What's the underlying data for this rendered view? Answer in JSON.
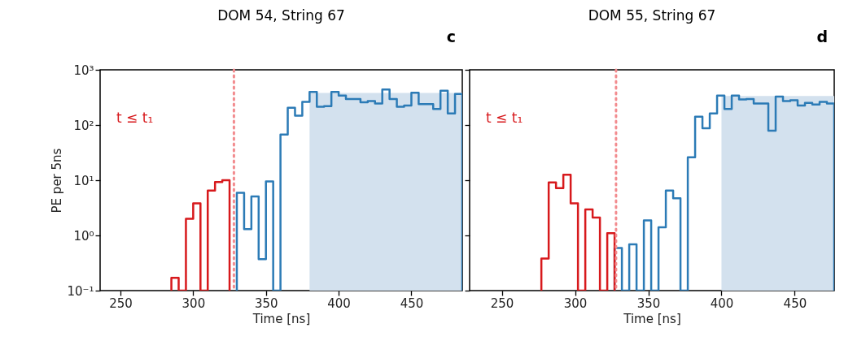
{
  "chart_data": [
    {
      "type": "histogram",
      "title": "DOM 54, String 67",
      "xlabel": "Time [ns]",
      "ylabel": "PE per 5ns",
      "log": true,
      "xlim": [
        236,
        485
      ],
      "xticks": [
        250,
        300,
        350,
        400,
        450
      ],
      "ylim": [
        0.1,
        1000
      ],
      "yticks": [
        {
          "value": 0.1,
          "label": "10⁻¹"
        },
        {
          "value": 1,
          "label": "10⁰"
        },
        {
          "value": 10,
          "label": "10¹"
        },
        {
          "value": 100,
          "label": "10²"
        },
        {
          "value": 1000,
          "label": "10³"
        }
      ],
      "annotations": [
        "t ≤ t₁",
        "c"
      ],
      "grid": false,
      "ref_lines": [
        {
          "axis": "x",
          "value": 328,
          "color": "#f28b8e",
          "line_style": "dotted"
        }
      ],
      "series": [
        {
          "type": "area",
          "color": "#d3e1ee",
          "x": [
            380,
            485
          ],
          "values": [
            380,
            380
          ]
        },
        {
          "color": "#2c7bb6",
          "bins": [
            330,
            335,
            340,
            345,
            350,
            355,
            360,
            365,
            370,
            375,
            380,
            385,
            390,
            395,
            400,
            405,
            410,
            415,
            420,
            425,
            430,
            435,
            440,
            445,
            450,
            455,
            460,
            465,
            470,
            475,
            480,
            485
          ],
          "values": [
            5.9,
            1.3,
            5.1,
            0.37,
            9.5,
            null,
            67,
            206,
            148,
            263,
            397,
            214,
            219,
            397,
            342,
            296,
            296,
            259,
            272,
            245,
            441,
            296,
            214,
            225,
            383,
            240,
            240,
            195,
            417,
            162,
            364
          ]
        },
        {
          "color": "#d7191c",
          "bins": [
            285,
            290,
            295,
            300,
            305,
            310,
            315,
            320,
            325
          ],
          "values": [
            0.17,
            null,
            2.0,
            3.8,
            null,
            6.5,
            9.3,
            10
          ]
        }
      ]
    },
    {
      "type": "histogram",
      "title": "DOM 55, String 67",
      "xlabel": "Time [ns]",
      "log": true,
      "xlim": [
        228,
        477
      ],
      "xticks": [
        250,
        300,
        350,
        400,
        450
      ],
      "ylim": [
        0.1,
        1000
      ],
      "yticks": [
        0.1,
        1,
        10,
        100,
        1000
      ],
      "tick_labels": "x",
      "annotations": [
        "t ≤ t₁",
        "d"
      ],
      "grid": false,
      "ref_lines": [
        {
          "axis": "x",
          "value": 328,
          "color": "#f28b8e",
          "line_style": "dotted"
        }
      ],
      "series": [
        {
          "type": "area",
          "color": "#d3e1ee",
          "x": [
            400,
            477
          ],
          "values": [
            335,
            335
          ]
        },
        {
          "color": "#2c7bb6",
          "bins": [
            327,
            332,
            337,
            342,
            347,
            352,
            357,
            362,
            367,
            372,
            377,
            382,
            387,
            392,
            397,
            402,
            407,
            412,
            417,
            422,
            427,
            432,
            437,
            442,
            447,
            452,
            457,
            462,
            467,
            472,
            477
          ],
          "values": [
            0.59,
            null,
            0.69,
            null,
            1.87,
            null,
            1.4,
            6.5,
            4.7,
            null,
            26,
            141,
            87,
            162,
            342,
            195,
            342,
            290,
            296,
            245,
            245,
            79,
            326,
            272,
            282,
            225,
            251,
            235,
            263,
            245
          ]
        },
        {
          "color": "#d7191c",
          "bins": [
            277,
            282,
            287,
            292,
            297,
            302,
            307,
            312,
            317,
            322,
            327
          ],
          "values": [
            0.38,
            9.1,
            7.2,
            12.6,
            3.8,
            null,
            2.96,
            2.1,
            null,
            1.1
          ]
        }
      ]
    }
  ]
}
